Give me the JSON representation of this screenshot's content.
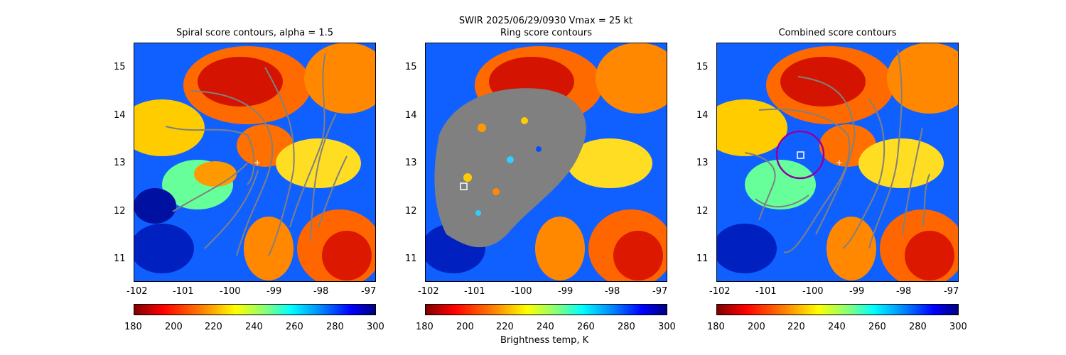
{
  "suptitle": "SWIR  2025/06/29/0930    Vmax = 25 kt",
  "colorbar_label": "Brightness temp, K",
  "chart_data": [
    {
      "type": "heatmap",
      "title": "Spiral score contours, alpha =  1.5",
      "xlim": [
        -102.2,
        -97
      ],
      "ylim": [
        10.5,
        15.5
      ],
      "xticks": [
        "-102",
        "-101",
        "-100",
        "-99",
        "-98",
        "-97"
      ],
      "yticks": [
        "11",
        "12",
        "13",
        "14",
        "15"
      ],
      "colorbar_ticks": [
        "180",
        "200",
        "220",
        "240",
        "260",
        "280",
        "300"
      ],
      "overlay": "spiral score contours (gray)",
      "marker_cross": [
        -99.6,
        13.0
      ]
    },
    {
      "type": "heatmap",
      "title": "Ring score contours",
      "xlim": [
        -102.2,
        -97
      ],
      "ylim": [
        10.5,
        15.5
      ],
      "xticks": [
        "-102",
        "-101",
        "-100",
        "-99",
        "-98",
        "-97"
      ],
      "yticks": [
        "11",
        "12",
        "13",
        "14",
        "15"
      ],
      "colorbar_ticks": [
        "180",
        "200",
        "220",
        "240",
        "260",
        "280",
        "300"
      ],
      "overlay": "ring score contours (gray)",
      "marker_square": [
        -101.3,
        12.5
      ]
    },
    {
      "type": "heatmap",
      "title": "Combined score contours",
      "xlim": [
        -102.2,
        -97
      ],
      "ylim": [
        10.5,
        15.5
      ],
      "xticks": [
        "-102",
        "-101",
        "-100",
        "-99",
        "-98",
        "-97"
      ],
      "yticks": [
        "11",
        "12",
        "13",
        "14",
        "15"
      ],
      "colorbar_ticks": [
        "180",
        "200",
        "220",
        "240",
        "260",
        "280",
        "300"
      ],
      "overlay": "combined score contours (gray)",
      "marker_square": [
        -100.4,
        13.15
      ],
      "marker_cross": [
        -99.6,
        13.0
      ],
      "circle_center": [
        -100.4,
        13.15
      ],
      "circle_radius_deg": 0.5
    }
  ],
  "colors": {
    "contour": "#808080",
    "circle": "#9400a0",
    "marker": "#ffffff"
  }
}
